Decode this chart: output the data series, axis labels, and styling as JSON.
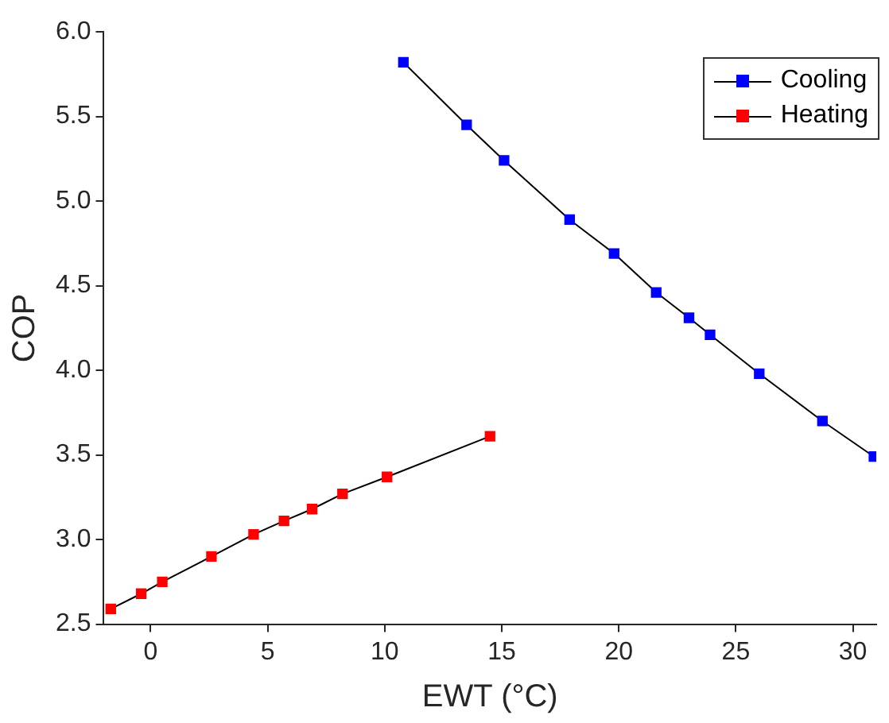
{
  "chart_data": {
    "type": "line",
    "xlabel": "EWT (°C)",
    "ylabel": "COP",
    "xlim": [
      -2,
      31
    ],
    "ylim": [
      2.5,
      6.0
    ],
    "xticks": [
      0,
      5,
      10,
      15,
      20,
      25,
      30
    ],
    "yticks": [
      {
        "value": 2.5,
        "label": "2.5"
      },
      {
        "value": 3.0,
        "label": "3.0"
      },
      {
        "value": 3.5,
        "label": "3.5"
      },
      {
        "value": 4.0,
        "label": "4.0"
      },
      {
        "value": 4.5,
        "label": "4.5"
      },
      {
        "value": 5.0,
        "label": "5.0"
      },
      {
        "value": 5.5,
        "label": "5.5"
      },
      {
        "value": 6.0,
        "label": "6.0"
      }
    ],
    "grid": false,
    "legend": "top right",
    "marker": "square",
    "line_style": "solid",
    "series": [
      {
        "name": "Cooling",
        "color": "#0000ff",
        "x": [
          10.8,
          13.5,
          15.1,
          17.9,
          19.8,
          21.6,
          23.0,
          23.9,
          26.0,
          28.7,
          30.9
        ],
        "values": [
          5.82,
          5.45,
          5.24,
          4.89,
          4.69,
          4.46,
          4.31,
          4.21,
          3.98,
          3.7,
          3.49
        ]
      },
      {
        "name": "Heating",
        "color": "#ff0000",
        "x": [
          -1.7,
          -0.4,
          0.5,
          2.6,
          4.4,
          5.7,
          6.9,
          8.2,
          10.1,
          14.5
        ],
        "values": [
          2.59,
          2.68,
          2.75,
          2.9,
          3.03,
          3.11,
          3.18,
          3.27,
          3.37,
          3.61
        ]
      }
    ]
  }
}
